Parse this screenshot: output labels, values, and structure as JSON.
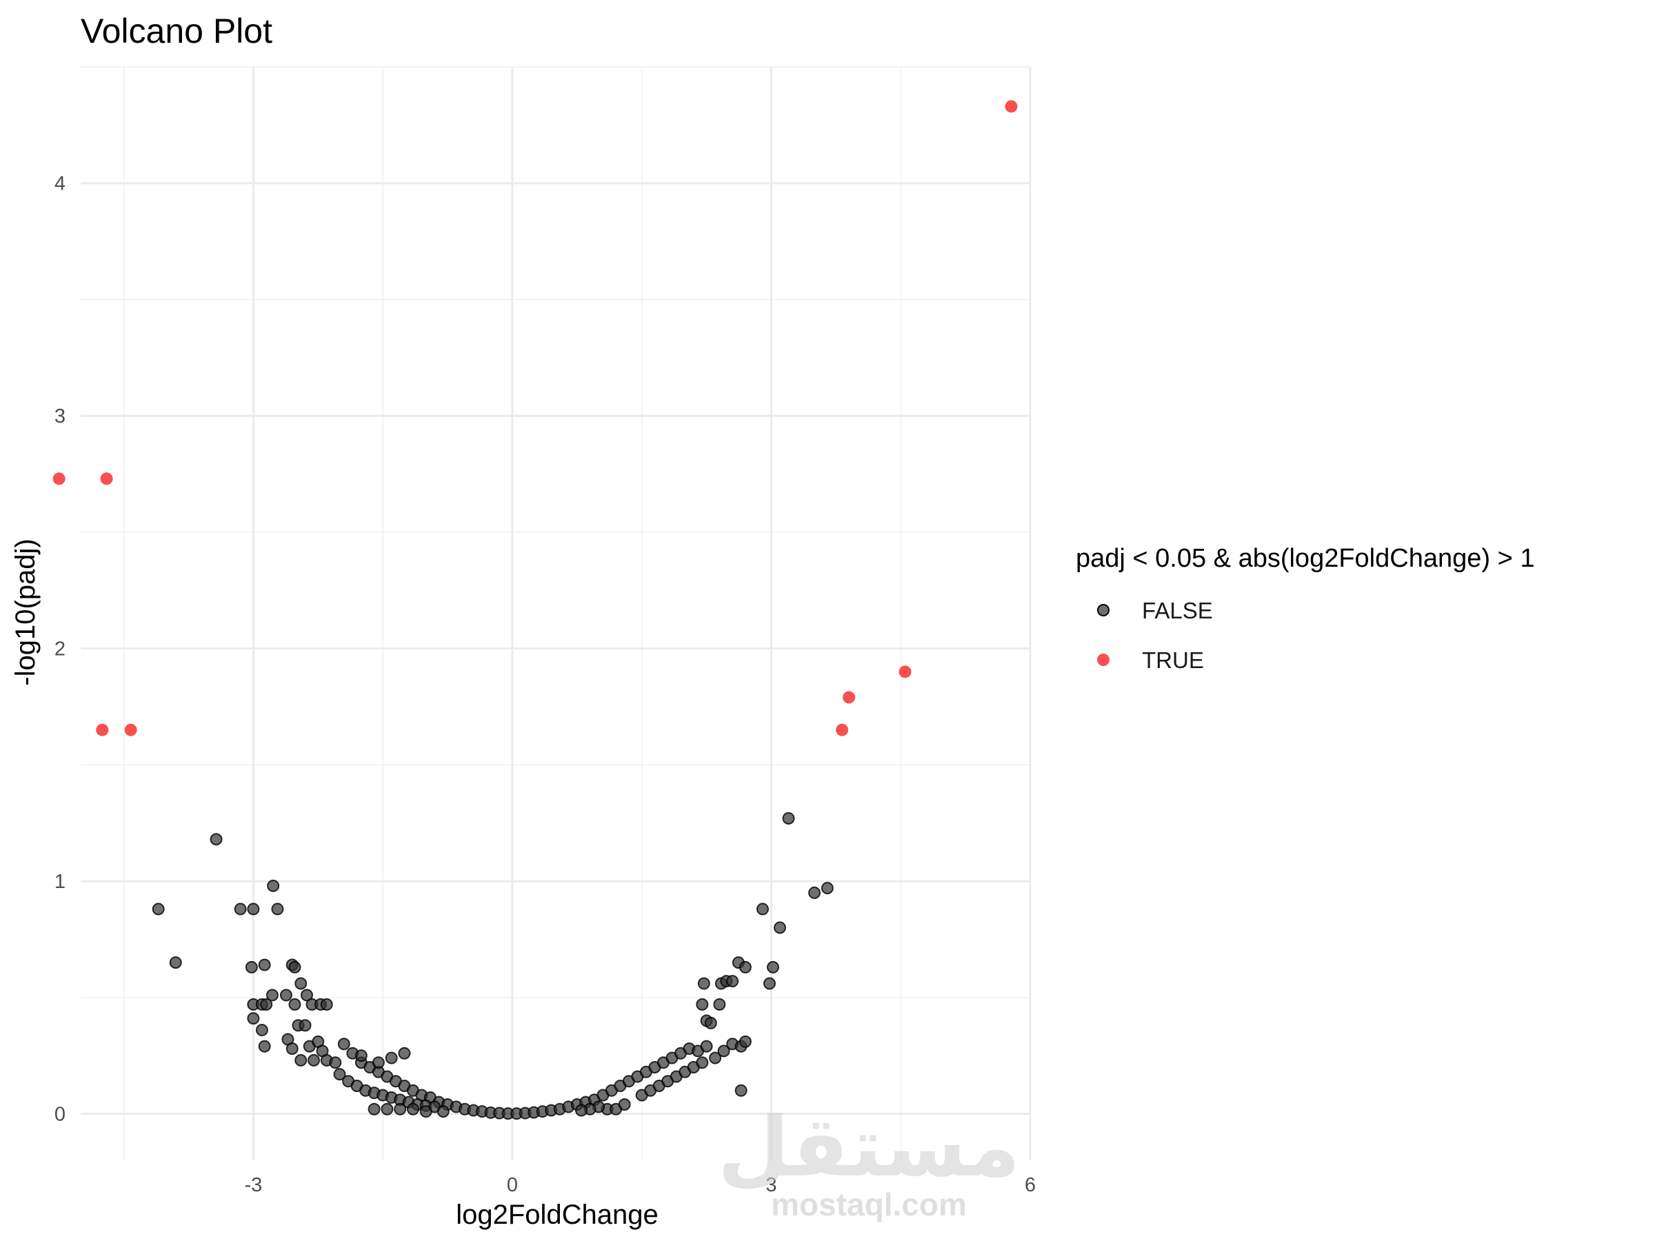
{
  "chart_data": {
    "type": "scatter",
    "title": "Volcano Plot",
    "xlabel": "log2FoldChange",
    "ylabel": "-log10(padj)",
    "xlim": [
      -5.0,
      6.0
    ],
    "ylim": [
      -0.2,
      4.5
    ],
    "x_ticks": [
      -3,
      0,
      3,
      6
    ],
    "y_ticks": [
      0,
      1,
      2,
      3,
      4
    ],
    "grid": true,
    "legend": {
      "title": "padj < 0.05 & abs(log2FoldChange) > 1",
      "placement": "right",
      "entries": [
        {
          "label": "FALSE",
          "color": "#333333"
        },
        {
          "label": "TRUE",
          "color": "#f8504f"
        }
      ]
    },
    "series": [
      {
        "name": "FALSE",
        "color": "#333333",
        "points": [
          [
            -3.43,
            1.18
          ],
          [
            -4.1,
            0.88
          ],
          [
            -3.9,
            0.65
          ],
          [
            -3.15,
            0.88
          ],
          [
            -3.0,
            0.88
          ],
          [
            -2.77,
            0.98
          ],
          [
            -2.72,
            0.88
          ],
          [
            -3.02,
            0.63
          ],
          [
            -2.87,
            0.64
          ],
          [
            -2.55,
            0.64
          ],
          [
            -2.52,
            0.63
          ],
          [
            -3.0,
            0.47
          ],
          [
            -2.9,
            0.47
          ],
          [
            -2.85,
            0.47
          ],
          [
            -2.78,
            0.51
          ],
          [
            -2.62,
            0.51
          ],
          [
            -2.52,
            0.47
          ],
          [
            -2.45,
            0.56
          ],
          [
            -2.38,
            0.51
          ],
          [
            -2.32,
            0.47
          ],
          [
            -2.22,
            0.47
          ],
          [
            -2.15,
            0.47
          ],
          [
            -3.0,
            0.41
          ],
          [
            -2.9,
            0.36
          ],
          [
            -2.87,
            0.29
          ],
          [
            -2.6,
            0.32
          ],
          [
            -2.48,
            0.38
          ],
          [
            -2.4,
            0.38
          ],
          [
            -2.55,
            0.28
          ],
          [
            -2.35,
            0.29
          ],
          [
            -2.25,
            0.31
          ],
          [
            -2.45,
            0.23
          ],
          [
            -2.3,
            0.23
          ],
          [
            -2.2,
            0.27
          ],
          [
            -2.15,
            0.23
          ],
          [
            -2.05,
            0.22
          ],
          [
            -1.95,
            0.3
          ],
          [
            -1.85,
            0.26
          ],
          [
            -1.75,
            0.22
          ],
          [
            -1.65,
            0.2
          ],
          [
            -1.55,
            0.18
          ],
          [
            -1.45,
            0.16
          ],
          [
            -1.35,
            0.14
          ],
          [
            -1.25,
            0.12
          ],
          [
            -1.15,
            0.1
          ],
          [
            -1.05,
            0.08
          ],
          [
            -0.95,
            0.07
          ],
          [
            -0.85,
            0.05
          ],
          [
            -0.75,
            0.04
          ],
          [
            -0.65,
            0.03
          ],
          [
            -0.55,
            0.02
          ],
          [
            -0.45,
            0.015
          ],
          [
            -0.35,
            0.01
          ],
          [
            -0.25,
            0.005
          ],
          [
            -0.15,
            0.003
          ],
          [
            -0.05,
            0.001
          ],
          [
            -2.0,
            0.17
          ],
          [
            -1.9,
            0.14
          ],
          [
            -1.8,
            0.12
          ],
          [
            -1.7,
            0.1
          ],
          [
            -1.6,
            0.09
          ],
          [
            -1.5,
            0.08
          ],
          [
            -1.4,
            0.07
          ],
          [
            -1.3,
            0.06
          ],
          [
            -1.2,
            0.05
          ],
          [
            -1.1,
            0.04
          ],
          [
            -1.0,
            0.035
          ],
          [
            -0.9,
            0.03
          ],
          [
            -1.6,
            0.02
          ],
          [
            -1.45,
            0.02
          ],
          [
            -1.3,
            0.02
          ],
          [
            -1.15,
            0.02
          ],
          [
            -1.0,
            0.01
          ],
          [
            -0.8,
            0.01
          ],
          [
            -1.25,
            0.26
          ],
          [
            -1.4,
            0.24
          ],
          [
            -1.55,
            0.22
          ],
          [
            -1.75,
            0.25
          ],
          [
            0.05,
            0.001
          ],
          [
            0.15,
            0.003
          ],
          [
            0.25,
            0.006
          ],
          [
            0.35,
            0.01
          ],
          [
            0.45,
            0.015
          ],
          [
            0.55,
            0.02
          ],
          [
            0.65,
            0.03
          ],
          [
            0.75,
            0.04
          ],
          [
            0.85,
            0.05
          ],
          [
            0.95,
            0.06
          ],
          [
            1.05,
            0.08
          ],
          [
            1.15,
            0.1
          ],
          [
            1.25,
            0.12
          ],
          [
            1.35,
            0.14
          ],
          [
            1.45,
            0.16
          ],
          [
            1.55,
            0.18
          ],
          [
            1.65,
            0.2
          ],
          [
            1.75,
            0.22
          ],
          [
            1.85,
            0.24
          ],
          [
            1.95,
            0.26
          ],
          [
            2.05,
            0.28
          ],
          [
            2.15,
            0.27
          ],
          [
            2.25,
            0.29
          ],
          [
            1.1,
            0.02
          ],
          [
            1.2,
            0.02
          ],
          [
            1.3,
            0.04
          ],
          [
            1.0,
            0.03
          ],
          [
            0.9,
            0.02
          ],
          [
            0.8,
            0.015
          ],
          [
            1.5,
            0.08
          ],
          [
            1.6,
            0.1
          ],
          [
            1.7,
            0.12
          ],
          [
            1.8,
            0.14
          ],
          [
            1.9,
            0.16
          ],
          [
            2.0,
            0.18
          ],
          [
            2.1,
            0.2
          ],
          [
            2.2,
            0.22
          ],
          [
            2.35,
            0.24
          ],
          [
            2.45,
            0.27
          ],
          [
            2.55,
            0.3
          ],
          [
            2.65,
            0.29
          ],
          [
            2.7,
            0.31
          ],
          [
            2.2,
            0.47
          ],
          [
            2.22,
            0.56
          ],
          [
            2.25,
            0.4
          ],
          [
            2.3,
            0.39
          ],
          [
            2.4,
            0.47
          ],
          [
            2.42,
            0.56
          ],
          [
            2.48,
            0.57
          ],
          [
            2.55,
            0.57
          ],
          [
            2.62,
            0.65
          ],
          [
            2.7,
            0.63
          ],
          [
            2.65,
            0.1
          ],
          [
            2.9,
            0.88
          ],
          [
            2.98,
            0.56
          ],
          [
            3.02,
            0.63
          ],
          [
            3.1,
            0.8
          ],
          [
            3.2,
            1.27
          ],
          [
            3.5,
            0.95
          ],
          [
            3.65,
            0.97
          ]
        ]
      },
      {
        "name": "TRUE",
        "color": "#f8504f",
        "points": [
          [
            -5.25,
            2.73
          ],
          [
            -4.7,
            2.73
          ],
          [
            -4.75,
            1.65
          ],
          [
            -4.42,
            1.65
          ],
          [
            3.82,
            1.65
          ],
          [
            3.9,
            1.79
          ],
          [
            4.55,
            1.9
          ],
          [
            5.78,
            4.33
          ]
        ]
      }
    ]
  },
  "watermark": {
    "arabic": "مستقل",
    "latin": "mostaql.com"
  }
}
